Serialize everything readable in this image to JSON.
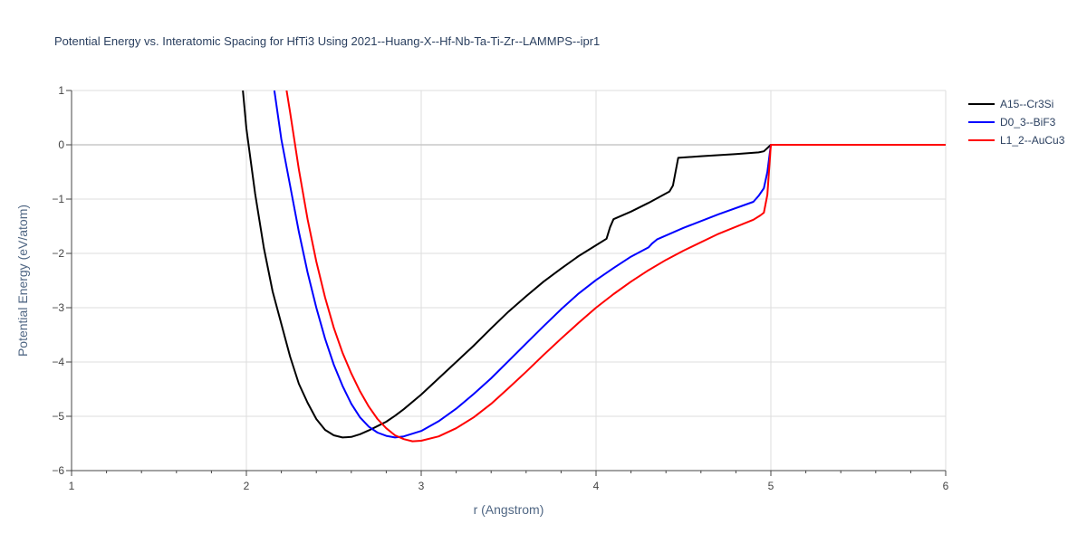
{
  "chart_data": {
    "type": "line",
    "title": "Potential Energy vs. Interatomic Spacing for HfTi3 Using 2021--Huang-X--Hf-Nb-Ta-Ti-Zr--LAMMPS--ipr1",
    "xlabel": "r (Angstrom)",
    "ylabel": "Potential Energy (eV/atom)",
    "xlim": [
      1,
      6
    ],
    "ylim": [
      -6,
      1
    ],
    "xticks": [
      1,
      2,
      3,
      4,
      5,
      6
    ],
    "yticks": [
      1,
      0,
      -1,
      -2,
      -3,
      -4,
      -5,
      -6
    ],
    "xtick_labels": [
      "1",
      "2",
      "3",
      "4",
      "5",
      "6"
    ],
    "ytick_labels": [
      "1",
      "0",
      "−1",
      "−2",
      "−3",
      "−4",
      "−5",
      "−6"
    ],
    "grid": true,
    "legend_position": "top-right",
    "series": [
      {
        "name": "A15--Cr3Si",
        "color": "#000000",
        "x": [
          1.98,
          2.0,
          2.05,
          2.1,
          2.15,
          2.2,
          2.25,
          2.3,
          2.35,
          2.4,
          2.45,
          2.5,
          2.55,
          2.6,
          2.65,
          2.7,
          2.75,
          2.8,
          2.85,
          2.9,
          3.0,
          3.1,
          3.2,
          3.3,
          3.4,
          3.5,
          3.6,
          3.7,
          3.8,
          3.9,
          4.0,
          4.06,
          4.08,
          4.1,
          4.2,
          4.3,
          4.42,
          4.44,
          4.47,
          4.6,
          4.8,
          4.93,
          4.96,
          5.0,
          5.5,
          6.0
        ],
        "y": [
          1.0,
          0.3,
          -0.9,
          -1.9,
          -2.7,
          -3.3,
          -3.9,
          -4.4,
          -4.75,
          -5.05,
          -5.25,
          -5.35,
          -5.39,
          -5.38,
          -5.33,
          -5.26,
          -5.18,
          -5.1,
          -4.99,
          -4.87,
          -4.6,
          -4.3,
          -4.0,
          -3.7,
          -3.38,
          -3.07,
          -2.79,
          -2.52,
          -2.28,
          -2.05,
          -1.85,
          -1.73,
          -1.52,
          -1.37,
          -1.23,
          -1.07,
          -0.86,
          -0.75,
          -0.24,
          -0.21,
          -0.17,
          -0.14,
          -0.12,
          0.0,
          0.0,
          0.0
        ]
      },
      {
        "name": "D0_3--BiF3",
        "color": "#0000ff",
        "x": [
          2.16,
          2.2,
          2.25,
          2.3,
          2.35,
          2.4,
          2.45,
          2.5,
          2.55,
          2.6,
          2.65,
          2.7,
          2.75,
          2.8,
          2.85,
          2.9,
          3.0,
          3.1,
          3.2,
          3.3,
          3.4,
          3.5,
          3.6,
          3.7,
          3.8,
          3.9,
          4.0,
          4.1,
          4.2,
          4.3,
          4.32,
          4.35,
          4.5,
          4.7,
          4.9,
          4.93,
          4.96,
          4.98,
          5.0,
          5.5,
          6.0
        ],
        "y": [
          1.0,
          0.1,
          -0.75,
          -1.6,
          -2.35,
          -3.0,
          -3.57,
          -4.05,
          -4.44,
          -4.77,
          -5.02,
          -5.19,
          -5.3,
          -5.36,
          -5.39,
          -5.37,
          -5.27,
          -5.09,
          -4.86,
          -4.59,
          -4.3,
          -3.98,
          -3.66,
          -3.34,
          -3.03,
          -2.74,
          -2.49,
          -2.27,
          -2.06,
          -1.89,
          -1.82,
          -1.74,
          -1.53,
          -1.28,
          -1.05,
          -0.94,
          -0.8,
          -0.5,
          0.0,
          0.0,
          0.0
        ]
      },
      {
        "name": "L1_2--AuCu3",
        "color": "#ff0000",
        "x": [
          2.23,
          2.25,
          2.3,
          2.35,
          2.4,
          2.45,
          2.5,
          2.55,
          2.6,
          2.65,
          2.7,
          2.75,
          2.8,
          2.85,
          2.9,
          2.95,
          3.0,
          3.1,
          3.2,
          3.3,
          3.4,
          3.5,
          3.6,
          3.7,
          3.8,
          3.9,
          4.0,
          4.1,
          4.2,
          4.3,
          4.4,
          4.5,
          4.7,
          4.9,
          4.94,
          4.96,
          4.98,
          5.0,
          5.5,
          6.0
        ],
        "y": [
          1.0,
          0.6,
          -0.45,
          -1.37,
          -2.15,
          -2.81,
          -3.37,
          -3.83,
          -4.21,
          -4.54,
          -4.82,
          -5.05,
          -5.22,
          -5.35,
          -5.42,
          -5.46,
          -5.45,
          -5.37,
          -5.22,
          -5.02,
          -4.77,
          -4.48,
          -4.18,
          -3.87,
          -3.57,
          -3.28,
          -3.0,
          -2.75,
          -2.52,
          -2.31,
          -2.12,
          -1.95,
          -1.64,
          -1.38,
          -1.3,
          -1.25,
          -0.92,
          0.0,
          0.0,
          0.0
        ]
      }
    ]
  }
}
